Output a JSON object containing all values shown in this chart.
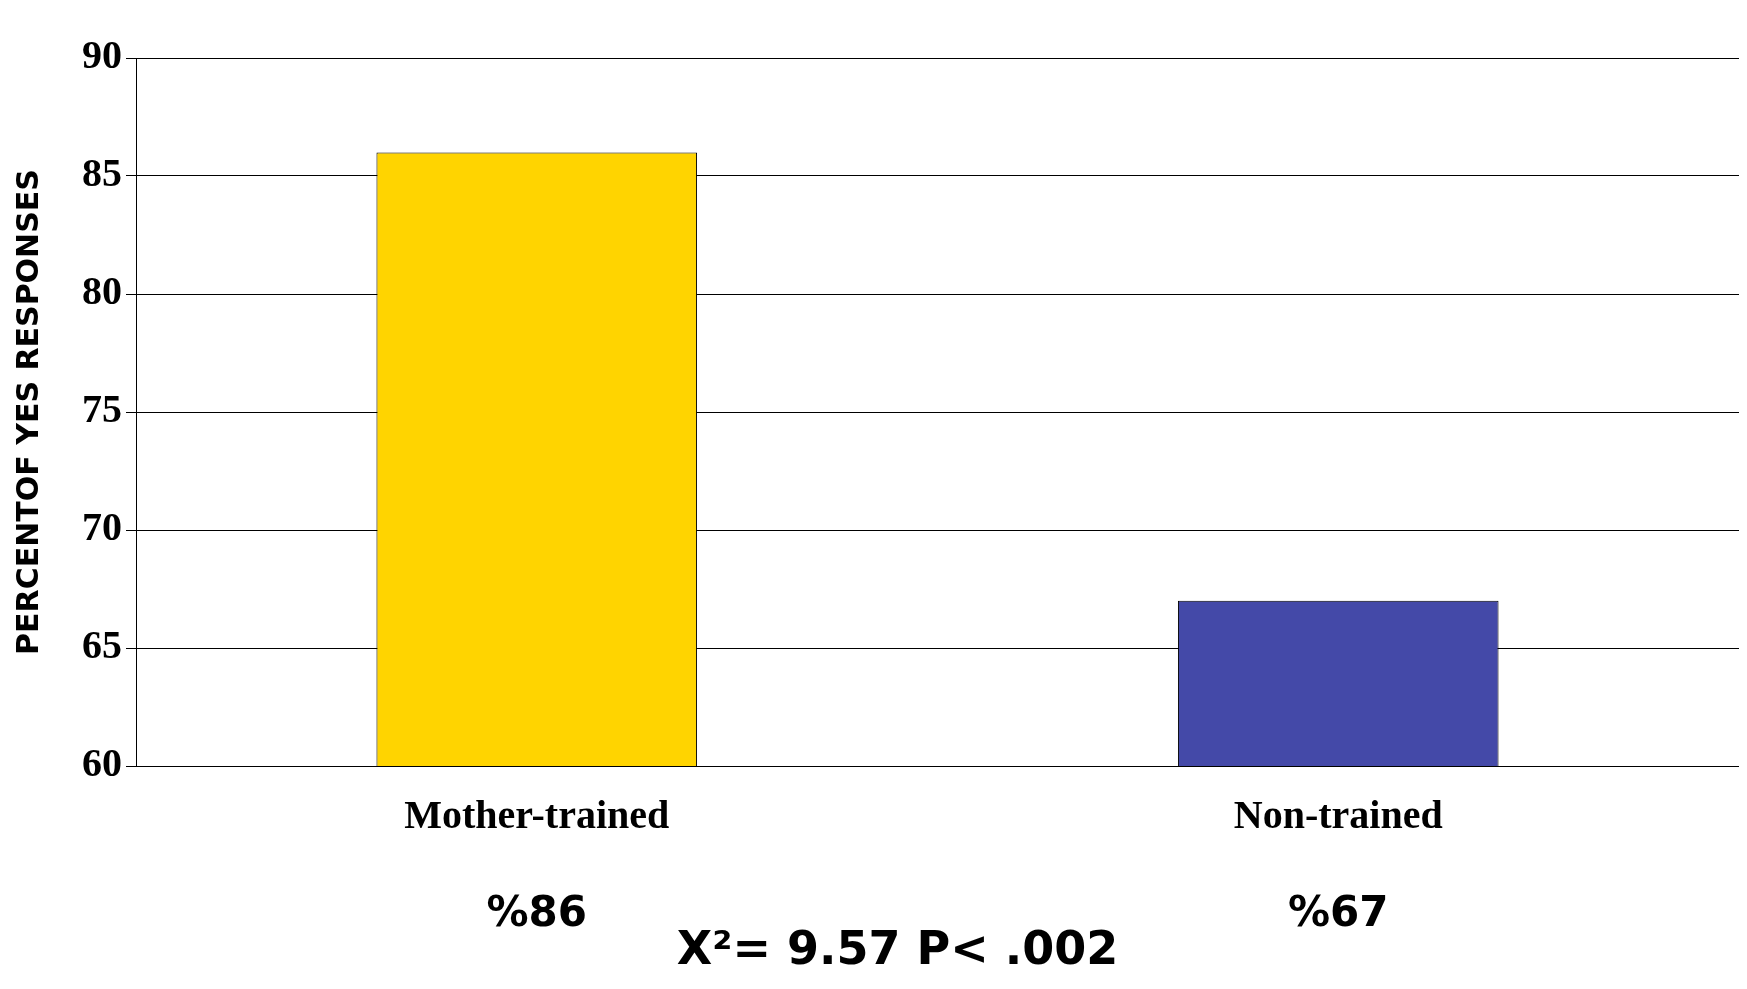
{
  "chart_data": {
    "type": "bar",
    "ylabel": "PERCENTOF YES RESPONSES",
    "categories": [
      "Mother-trained",
      "Non-trained"
    ],
    "values": [
      86,
      67
    ],
    "colors": [
      "#ffd400",
      "#4449a8"
    ],
    "value_labels": [
      "%86",
      "%67"
    ],
    "ylim": [
      60,
      90
    ],
    "yticks": [
      60,
      65,
      70,
      75,
      80,
      85,
      90
    ],
    "grid": "y",
    "annotations": [
      "X²= 9.57 P< .002"
    ]
  }
}
